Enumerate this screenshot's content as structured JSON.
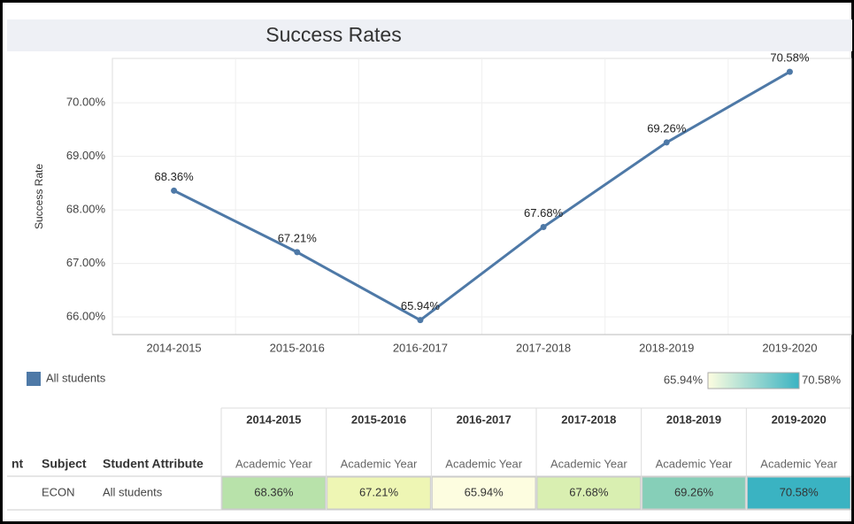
{
  "chart_data": {
    "type": "line",
    "title": "Success Rates",
    "y_label": "Success Rate",
    "categories": [
      "2014-2015",
      "2015-2016",
      "2016-2017",
      "2017-2018",
      "2018-2019",
      "2019-2020"
    ],
    "series": [
      {
        "name": "All students",
        "color": "#4e79a7",
        "values": [
          68.36,
          67.21,
          65.94,
          67.68,
          69.26,
          70.58
        ],
        "value_labels": [
          "68.36%",
          "67.21%",
          "65.94%",
          "67.68%",
          "69.26%",
          "70.58%"
        ]
      }
    ],
    "ylim": [
      65.67,
      70.83
    ],
    "yticks": [
      {
        "value": 66,
        "label": "66.00%"
      },
      {
        "value": 67,
        "label": "67.00%"
      },
      {
        "value": 68,
        "label": "68.00%"
      },
      {
        "value": 69,
        "label": "69.00%"
      },
      {
        "value": 70,
        "label": "70.00%"
      }
    ],
    "grid": true
  },
  "color_legend": {
    "min_label": "65.94%",
    "max_label": "70.58%",
    "colors": [
      "#fdfde0",
      "#3ab3c2"
    ]
  },
  "table": {
    "row_headers": [
      "nt",
      "Subject",
      "Student Attribute"
    ],
    "column_sub_headers": [
      "Academic Year",
      "Academic Year",
      "Academic Year",
      "Academic Year",
      "Academic Year",
      "Academic Year"
    ],
    "rows": [
      {
        "subject": "ECON",
        "attribute": "All students",
        "cells": [
          "68.36%",
          "67.21%",
          "65.94%",
          "67.68%",
          "69.26%",
          "70.58%"
        ],
        "cell_colors": [
          "#b8e2aa",
          "#eef6b4",
          "#fdfde0",
          "#d9efb1",
          "#86cfb8",
          "#3ab3c2"
        ]
      }
    ]
  }
}
